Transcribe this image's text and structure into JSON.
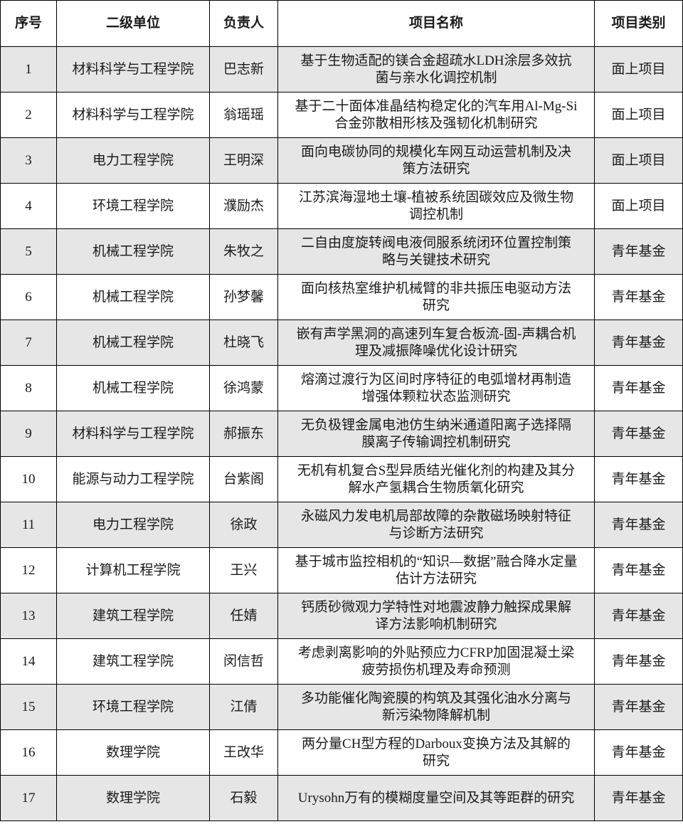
{
  "headers": [
    "序号",
    "二级单位",
    "负责人",
    "项目名称",
    "项目类别"
  ],
  "rows": [
    {
      "no": "1",
      "unit": "材料科学与工程学院",
      "leader": "巴志新",
      "title": "基于生物适配的镁合金超疏水LDH涂层多效抗\n菌与亲水化调控机制",
      "category": "面上项目"
    },
    {
      "no": "2",
      "unit": "材料科学与工程学院",
      "leader": "翁瑶瑶",
      "title": "基于二十面体准晶结构稳定化的汽车用Al-Mg-Si\n合金弥散相形核及强韧化机制研究",
      "category": "面上项目"
    },
    {
      "no": "3",
      "unit": "电力工程学院",
      "leader": "王明深",
      "title": "面向电碳协同的规模化车网互动运营机制及决\n策方法研究",
      "category": "面上项目"
    },
    {
      "no": "4",
      "unit": "环境工程学院",
      "leader": "濮励杰",
      "title": "江苏滨海湿地土壤-植被系统固碳效应及微生物\n调控机制",
      "category": "面上项目"
    },
    {
      "no": "5",
      "unit": "机械工程学院",
      "leader": "朱牧之",
      "title": "二自由度旋转阀电液伺服系统闭环位置控制策\n略与关键技术研究",
      "category": "青年基金"
    },
    {
      "no": "6",
      "unit": "机械工程学院",
      "leader": "孙梦馨",
      "title": "面向核热室维护机械臂的非共振压电驱动方法\n研究",
      "category": "青年基金"
    },
    {
      "no": "7",
      "unit": "机械工程学院",
      "leader": "杜晓飞",
      "title": "嵌有声学黑洞的高速列车复合板流-固-声耦合机\n理及减振降噪优化设计研究",
      "category": "青年基金"
    },
    {
      "no": "8",
      "unit": "机械工程学院",
      "leader": "徐鸿蒙",
      "title": "熔滴过渡行为区间时序特征的电弧增材再制造\n增强体颗粒状态监测研究",
      "category": "青年基金"
    },
    {
      "no": "9",
      "unit": "材料科学与工程学院",
      "leader": "郝振东",
      "title": "无负极锂金属电池仿生纳米通道阳离子选择隔\n膜离子传输调控机制研究",
      "category": "青年基金"
    },
    {
      "no": "10",
      "unit": "能源与动力工程学院",
      "leader": "台紫阁",
      "title": "无机有机复合S型异质结光催化剂的构建及其分\n解水产氢耦合生物质氧化研究",
      "category": "青年基金"
    },
    {
      "no": "11",
      "unit": "电力工程学院",
      "leader": "徐政",
      "title": "永磁风力发电机局部故障的杂散磁场映射特征\n与诊断方法研究",
      "category": "青年基金"
    },
    {
      "no": "12",
      "unit": "计算机工程学院",
      "leader": "王兴",
      "title": "基于城市监控相机的“知识—数据”融合降水定量\n估计方法研究",
      "category": "青年基金"
    },
    {
      "no": "13",
      "unit": "建筑工程学院",
      "leader": "任婧",
      "title": "钙质砂微观力学特性对地震波静力触探成果解\n译方法影响机制研究",
      "category": "青年基金"
    },
    {
      "no": "14",
      "unit": "建筑工程学院",
      "leader": "闵信哲",
      "title": "考虑剥离影响的外贴预应力CFRP加固混凝土梁\n疲劳损伤机理及寿命预测",
      "category": "青年基金"
    },
    {
      "no": "15",
      "unit": "环境工程学院",
      "leader": "江倩",
      "title": "多功能催化陶瓷膜的构筑及其强化油水分离与\n新污染物降解机制",
      "category": "青年基金"
    },
    {
      "no": "16",
      "unit": "数理学院",
      "leader": "王改华",
      "title": "两分量CH型方程的Darboux变换方法及其解的\n研究",
      "category": "青年基金"
    },
    {
      "no": "17",
      "unit": "数理学院",
      "leader": "石毅",
      "title": "Urysohn万有的模糊度量空间及其等距群的研究",
      "category": "青年基金"
    }
  ]
}
